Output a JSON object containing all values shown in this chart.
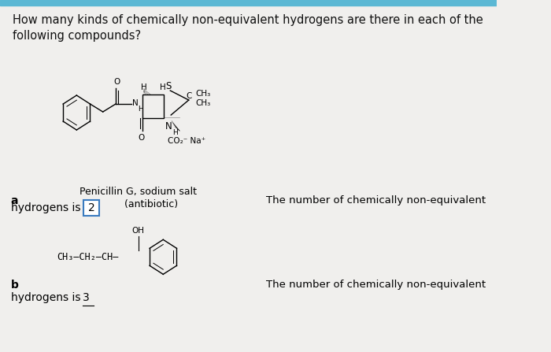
{
  "background_color": "#f0efed",
  "top_bar_color": "#5bb8d4",
  "title_text": "How many kinds of chemically non-equivalent hydrogens are there in each of the\nfollowing compounds?",
  "title_fontsize": 10.5,
  "title_color": "#111111",
  "label_a": "a",
  "label_b": "b",
  "label_fontsize": 10,
  "hydro_a_text": "hydrogens is ",
  "hydro_a_answer": "2",
  "hydro_b_text": "hydrogens is  3",
  "penicillin_label": "Penicillin G, sodium salt\n        (antibiotic)",
  "right_text_a": "The number of chemically non-equivalent",
  "right_text_b": "The number of chemically non-equivalent",
  "answer_box_color": "#3a7bbf",
  "font_size_struct": 7.5,
  "font_size_label": 9.5
}
